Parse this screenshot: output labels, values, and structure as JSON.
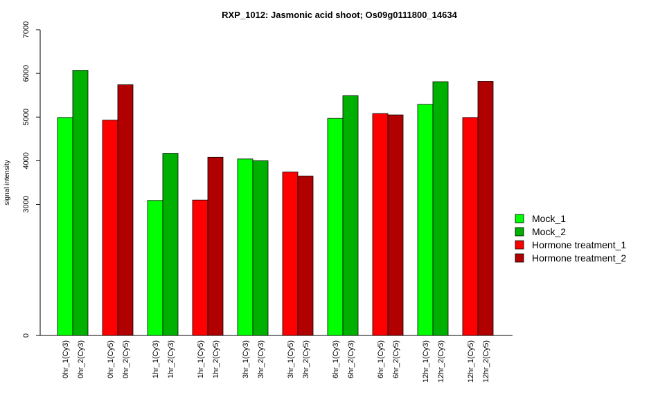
{
  "chart_data": {
    "type": "bar",
    "title": "RXP_1012: Jasmonic acid shoot; Os09g0111800_14634",
    "xlabel": "",
    "ylabel": "signal intensity",
    "ylim": [
      0,
      7000
    ],
    "yticks": [
      "0",
      "3000",
      "4000",
      "5000",
      "6000",
      "7000"
    ],
    "grid": false,
    "legend_position": "right",
    "categories": [
      "0hr_1(Cy3)",
      "0hr_2(Cy3)",
      "0hr_1(Cy5)",
      "0hr_2(Cy5)",
      "1hr_1(Cy3)",
      "1hr_2(Cy3)",
      "1hr_1(Cy5)",
      "1hr_2(Cy5)",
      "3hr_1(Cy3)",
      "3hr_2(Cy3)",
      "3hr_1(Cy5)",
      "3hr_2(Cy5)",
      "6hr_1(Cy3)",
      "6hr_2(Cy3)",
      "6hr_1(Cy5)",
      "6hr_2(Cy5)",
      "12hr_1(Cy3)",
      "12hr_2(Cy3)",
      "12hr_1(Cy5)",
      "12hr_2(Cy5)"
    ],
    "values": [
      4990,
      6070,
      4930,
      5740,
      3090,
      4170,
      3100,
      4080,
      4040,
      4000,
      3740,
      3650,
      4970,
      5490,
      5080,
      5050,
      5290,
      5810,
      4990,
      5820
    ],
    "bar_series_index": [
      0,
      1,
      2,
      3,
      0,
      1,
      2,
      3,
      0,
      1,
      2,
      3,
      0,
      1,
      2,
      3,
      0,
      1,
      2,
      3
    ],
    "series": [
      {
        "name": "Mock_1",
        "color": "#00ff00"
      },
      {
        "name": "Mock_2",
        "color": "#00b000"
      },
      {
        "name": "Hormone treatment_1",
        "color": "#ff0000"
      },
      {
        "name": "Hormone treatment_2",
        "color": "#b00000"
      }
    ]
  }
}
